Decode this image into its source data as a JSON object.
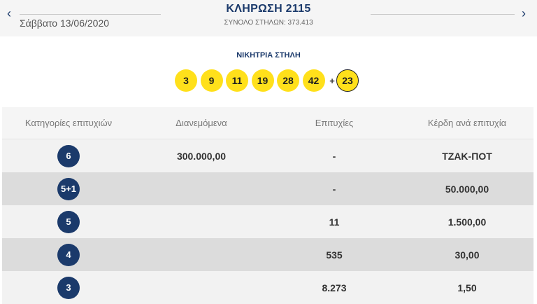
{
  "header": {
    "prev_icon": "chevron-left-icon",
    "next_icon": "chevron-right-icon",
    "prev_glyph": "‹",
    "next_glyph": "›",
    "date": "Σάββατο 13/06/2020",
    "title": "ΚΛΗΡΩΣΗ 2115",
    "total_columns": "ΣΥΝΟΛΟ ΣΤΗΛΩΝ: 373.413"
  },
  "winning": {
    "label": "ΝΙΚΗΤΡΙΑ ΣΤΗΛΗ",
    "numbers": [
      "3",
      "9",
      "11",
      "19",
      "28",
      "42"
    ],
    "plus": "+",
    "joker": "23"
  },
  "table": {
    "headers": [
      "Κατηγορίες επιτυχιών",
      "Διανεμόμενα",
      "Επιτυχίες",
      "Κέρδη ανά επιτυχία"
    ],
    "rows": [
      {
        "category": "6",
        "distributed": "300.000,00",
        "winners": "-",
        "prize": "ΤΖΑΚ-ΠΟΤ"
      },
      {
        "category": "5+1",
        "distributed": "",
        "winners": "-",
        "prize": "50.000,00"
      },
      {
        "category": "5",
        "distributed": "",
        "winners": "11",
        "prize": "1.500,00"
      },
      {
        "category": "4",
        "distributed": "",
        "winners": "535",
        "prize": "30,00"
      },
      {
        "category": "3",
        "distributed": "",
        "winners": "8.273",
        "prize": "1,50"
      }
    ]
  },
  "colors": {
    "brand_blue": "#1b3a6b",
    "ball_yellow": "#ffe01b"
  }
}
